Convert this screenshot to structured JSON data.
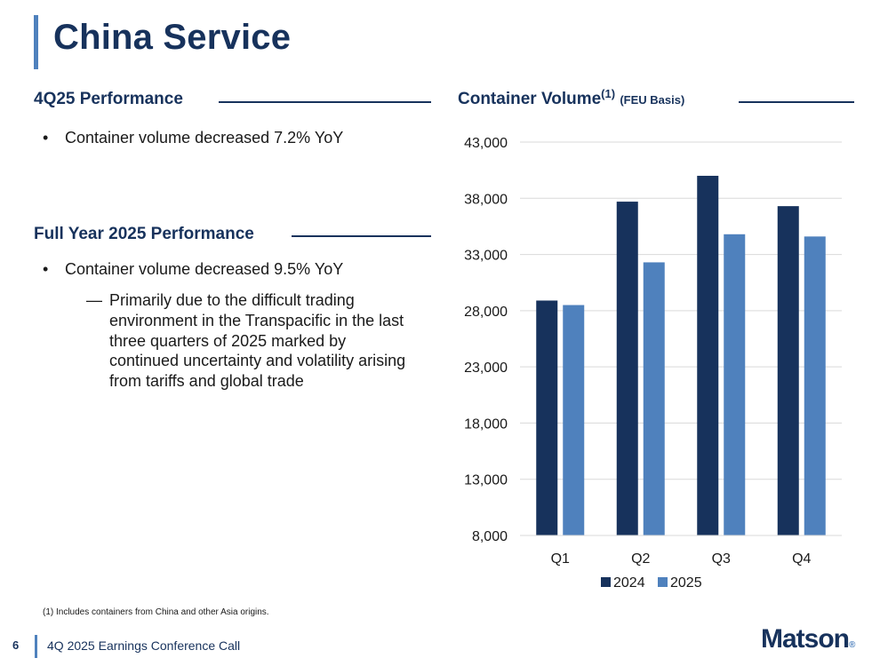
{
  "page": {
    "title": "China Service"
  },
  "left": {
    "section1": {
      "heading": "4Q25 Performance",
      "bullets": [
        "Container volume decreased 7.2% YoY"
      ]
    },
    "section2": {
      "heading": "Full Year 2025 Performance",
      "bullets": [
        "Container volume decreased 9.5% YoY"
      ],
      "sub_bullets": [
        "Primarily due to the difficult trading environment in the Transpacific in the last three quarters of 2025 marked by continued uncertainty and volatility arising from tariffs and global trade"
      ]
    }
  },
  "chart_header": {
    "title": "Container Volume",
    "superscript": "(1)",
    "qualifier": "(FEU Basis)"
  },
  "chart_data": {
    "type": "bar",
    "title": "Container Volume (1) (FEU Basis)",
    "categories": [
      "Q1",
      "Q2",
      "Q3",
      "Q4"
    ],
    "series": [
      {
        "name": "2024",
        "values": [
          28900,
          37700,
          40000,
          37300
        ],
        "color": "#17325c"
      },
      {
        "name": "2025",
        "values": [
          28500,
          32300,
          34800,
          34600
        ],
        "color": "#4f81bd"
      }
    ],
    "ylim": [
      8000,
      43000
    ],
    "yticks": [
      8000,
      13000,
      18000,
      23000,
      28000,
      33000,
      38000,
      43000
    ],
    "ytick_labels": [
      "8,000",
      "13,000",
      "18,000",
      "23,000",
      "28,000",
      "33,000",
      "38,000",
      "43,000"
    ],
    "xlabel": "",
    "ylabel": "",
    "grid": true,
    "legend": "bottom"
  },
  "footnote": "(1)  Includes containers from China and other Asia origins.",
  "footer": {
    "page_number": "6",
    "text": "4Q 2025 Earnings Conference Call",
    "logo": "Matson",
    "logo_mark": "®"
  },
  "colors": {
    "navy": "#17325c",
    "accent": "#4f81bd",
    "grid": "#d9d9d9"
  }
}
